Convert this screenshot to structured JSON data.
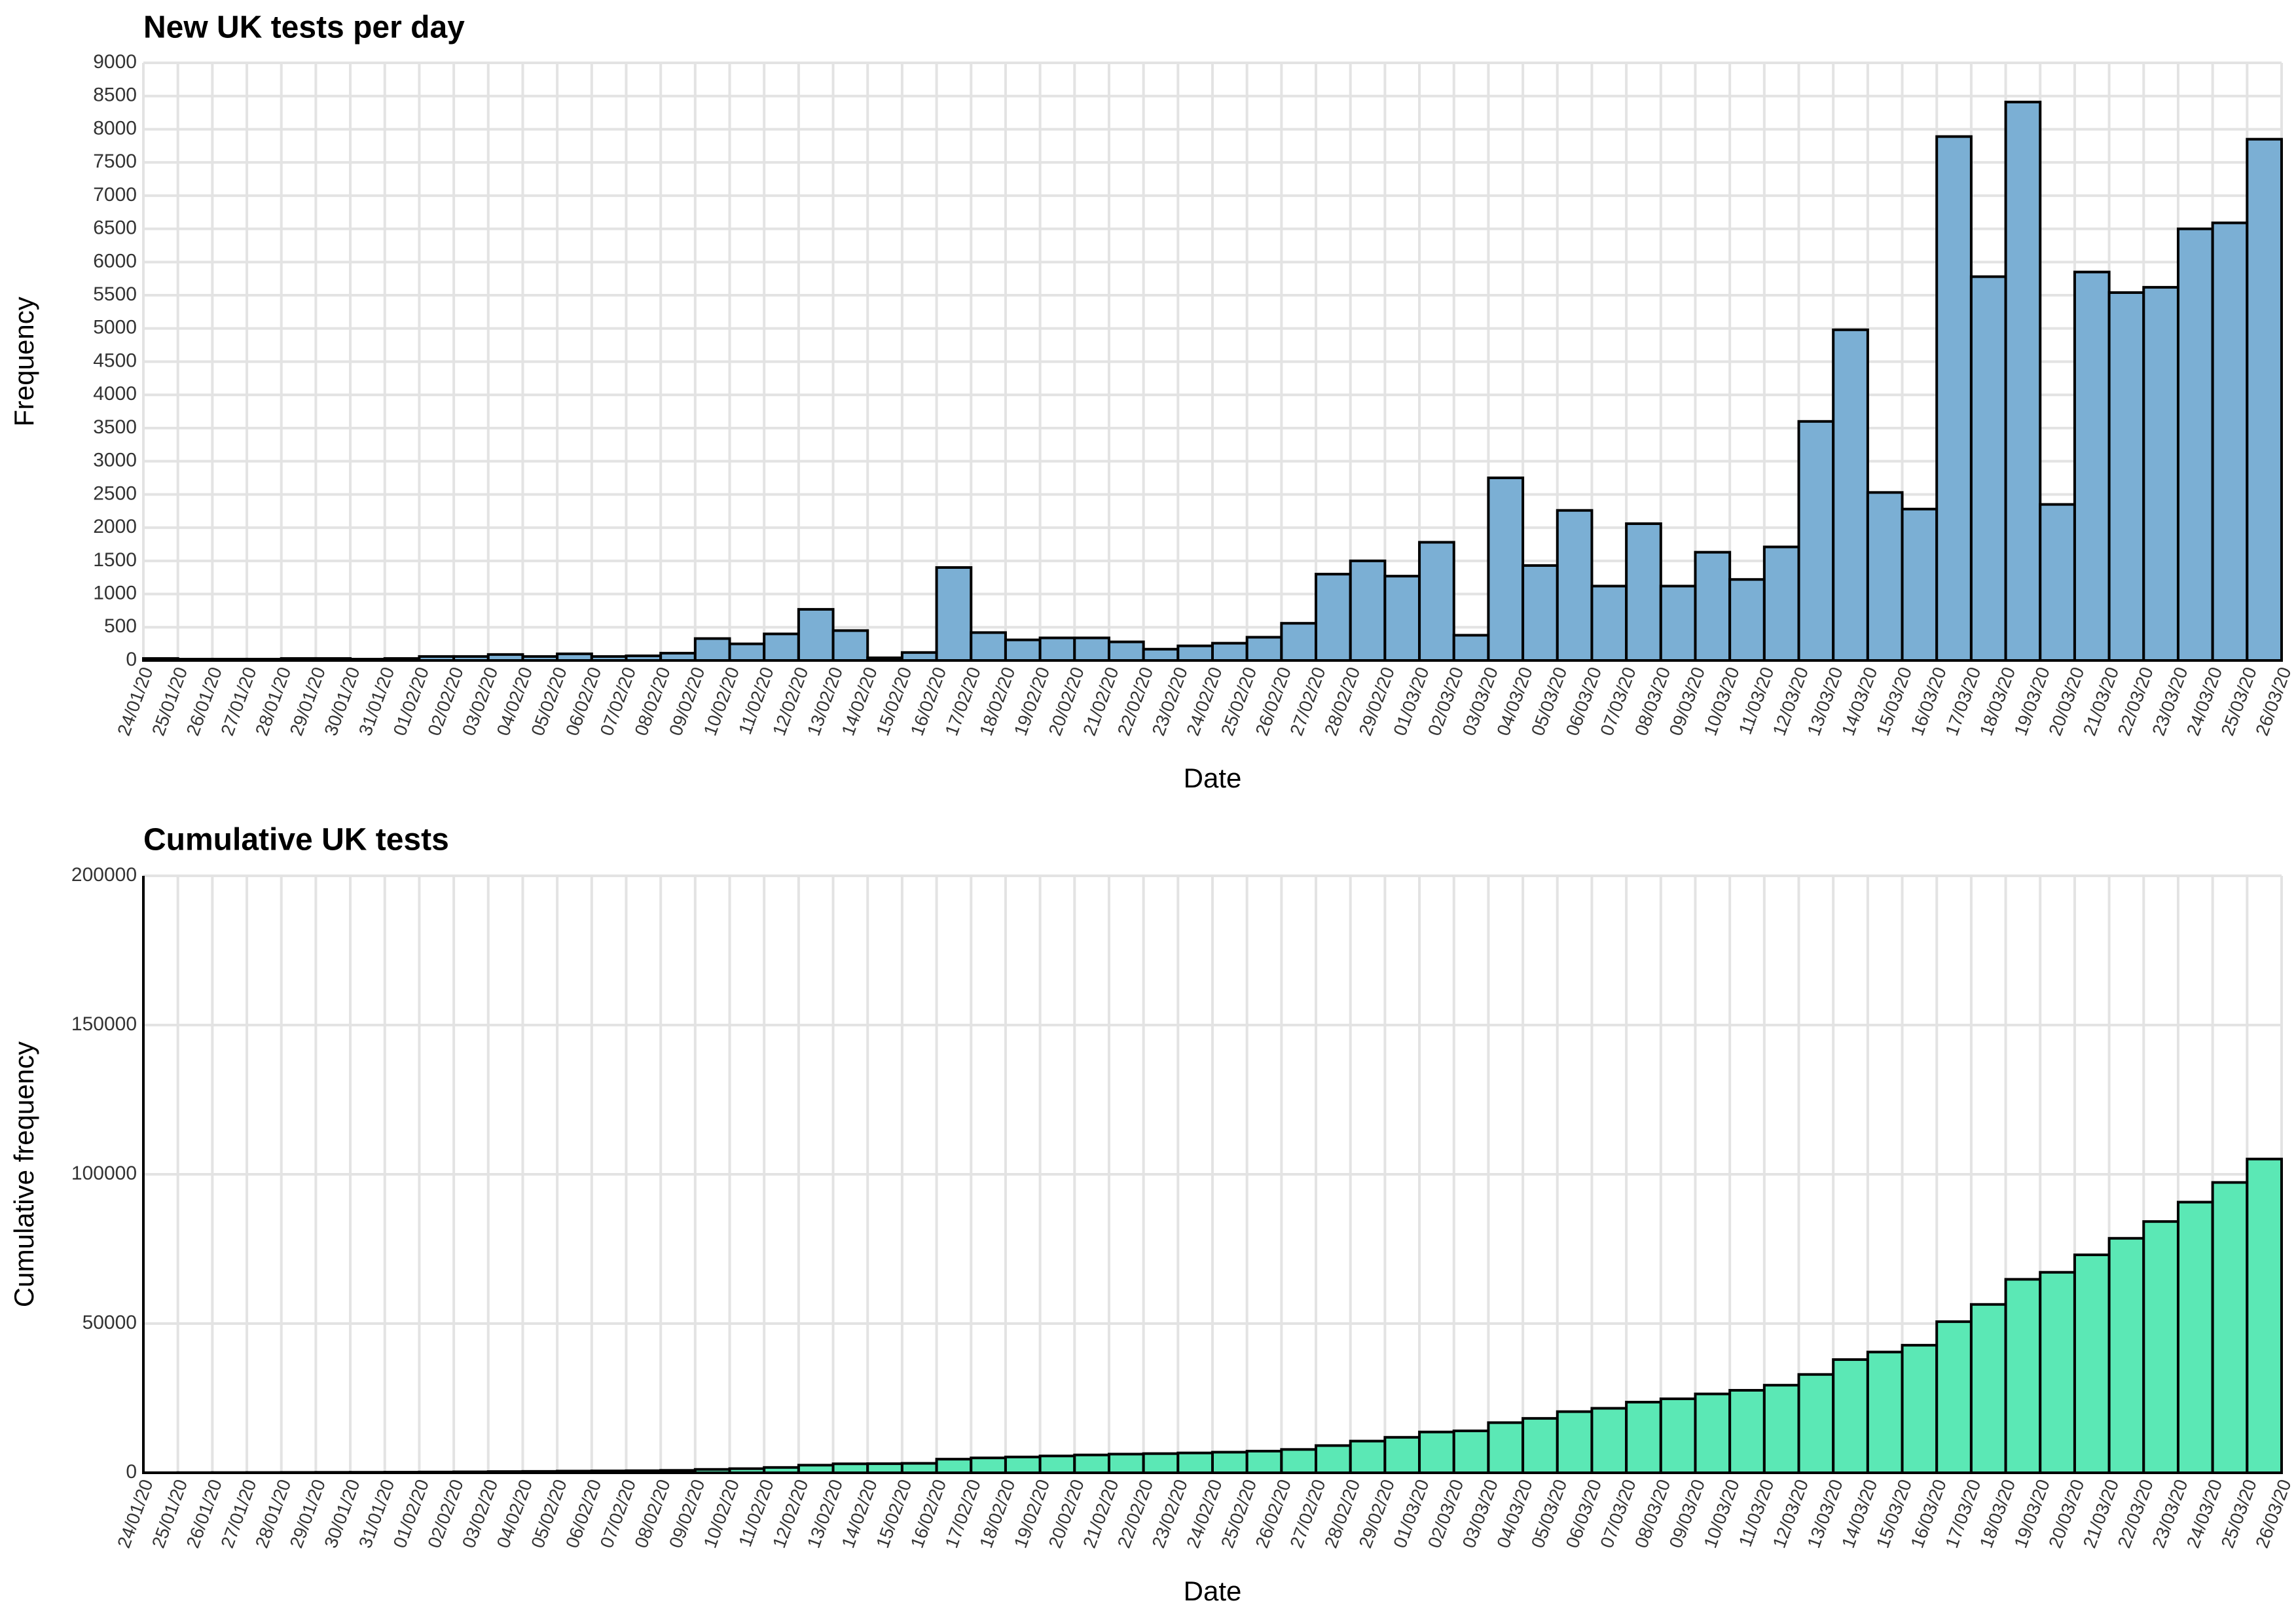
{
  "chart_data": [
    {
      "type": "histogram",
      "title": "New UK tests per day",
      "xlabel": "Date",
      "ylabel": "Frequency",
      "bins": [
        "24/01/20",
        "25/01/20",
        "26/01/20",
        "27/01/20",
        "28/01/20",
        "29/01/20",
        "30/01/20",
        "31/01/20",
        "01/02/20",
        "02/02/20",
        "03/02/20",
        "04/02/20",
        "05/02/20",
        "06/02/20",
        "07/02/20",
        "08/02/20",
        "09/02/20",
        "10/02/20",
        "11/02/20",
        "12/02/20",
        "13/02/20",
        "14/02/20",
        "15/02/20",
        "16/02/20",
        "17/02/20",
        "18/02/20",
        "19/02/20",
        "20/02/20",
        "21/02/20",
        "22/02/20",
        "23/02/20",
        "24/02/20",
        "25/02/20",
        "26/02/20",
        "27/02/20",
        "28/02/20",
        "29/02/20",
        "01/03/20",
        "02/03/20",
        "03/03/20",
        "04/03/20",
        "05/03/20",
        "06/03/20",
        "07/03/20",
        "08/03/20",
        "09/03/20",
        "10/03/20",
        "11/03/20",
        "12/03/20",
        "13/03/20",
        "14/03/20",
        "15/03/20",
        "16/03/20",
        "17/03/20",
        "18/03/20",
        "19/03/20",
        "20/03/20",
        "21/03/20",
        "22/03/20",
        "23/03/20",
        "24/03/20",
        "25/03/20",
        "26/03/20"
      ],
      "values": [
        30,
        20,
        20,
        20,
        30,
        30,
        20,
        30,
        60,
        60,
        90,
        60,
        100,
        60,
        70,
        110,
        330,
        250,
        400,
        770,
        450,
        40,
        120,
        1400,
        420,
        310,
        340,
        340,
        280,
        170,
        220,
        260,
        350,
        560,
        1300,
        1500,
        1270,
        1780,
        380,
        2750,
        1430,
        2260,
        1120,
        2060,
        1120,
        1630,
        1220,
        1710,
        3600,
        4980,
        2530,
        2280,
        7890,
        5780,
        8410,
        2350,
        5850,
        5540,
        5620,
        6500,
        6590,
        7850
      ],
      "color": "#7bafd4",
      "ylim": [
        0,
        9000
      ],
      "yticks": [
        0,
        500,
        1000,
        1500,
        2000,
        2500,
        3000,
        3500,
        4000,
        4500,
        5000,
        5500,
        6000,
        6500,
        7000,
        7500,
        8000,
        8500,
        9000
      ],
      "grid": true
    },
    {
      "type": "histogram",
      "title": "Cumulative UK tests",
      "xlabel": "Date",
      "ylabel": "Cumulative frequency",
      "bins": [
        "24/01/20",
        "25/01/20",
        "26/01/20",
        "27/01/20",
        "28/01/20",
        "29/01/20",
        "30/01/20",
        "31/01/20",
        "01/02/20",
        "02/02/20",
        "03/02/20",
        "04/02/20",
        "05/02/20",
        "06/02/20",
        "07/02/20",
        "08/02/20",
        "09/02/20",
        "10/02/20",
        "11/02/20",
        "12/02/20",
        "13/02/20",
        "14/02/20",
        "15/02/20",
        "16/02/20",
        "17/02/20",
        "18/02/20",
        "19/02/20",
        "20/02/20",
        "21/02/20",
        "22/02/20",
        "23/02/20",
        "24/02/20",
        "25/02/20",
        "26/02/20",
        "27/02/20",
        "28/02/20",
        "29/02/20",
        "01/03/20",
        "02/03/20",
        "03/03/20",
        "04/03/20",
        "05/03/20",
        "06/03/20",
        "07/03/20",
        "08/03/20",
        "09/03/20",
        "10/03/20",
        "11/03/20",
        "12/03/20",
        "13/03/20",
        "14/03/20",
        "15/03/20",
        "16/03/20",
        "17/03/20",
        "18/03/20",
        "19/03/20",
        "20/03/20",
        "21/03/20",
        "22/03/20",
        "23/03/20",
        "24/03/20",
        "25/03/20",
        "26/03/20"
      ],
      "values": [
        30,
        50,
        70,
        90,
        120,
        150,
        170,
        200,
        260,
        320,
        410,
        470,
        570,
        630,
        700,
        810,
        1140,
        1390,
        1790,
        2560,
        3010,
        3050,
        3170,
        4570,
        4990,
        5300,
        5640,
        5980,
        6260,
        6430,
        6650,
        6910,
        7260,
        7820,
        9120,
        10620,
        11890,
        13670,
        14050,
        16800,
        18230,
        20490,
        21610,
        23670,
        24790,
        26420,
        27640,
        29350,
        32950,
        37930,
        40460,
        42740,
        50630,
        56410,
        64820,
        67170,
        73020,
        78560,
        84180,
        90680,
        97270,
        105120
      ],
      "color": "#5be8b5",
      "ylim": [
        0,
        200000
      ],
      "yticks": [
        0,
        50000,
        100000,
        150000,
        200000
      ],
      "grid": true,
      "axis_line": true
    }
  ]
}
